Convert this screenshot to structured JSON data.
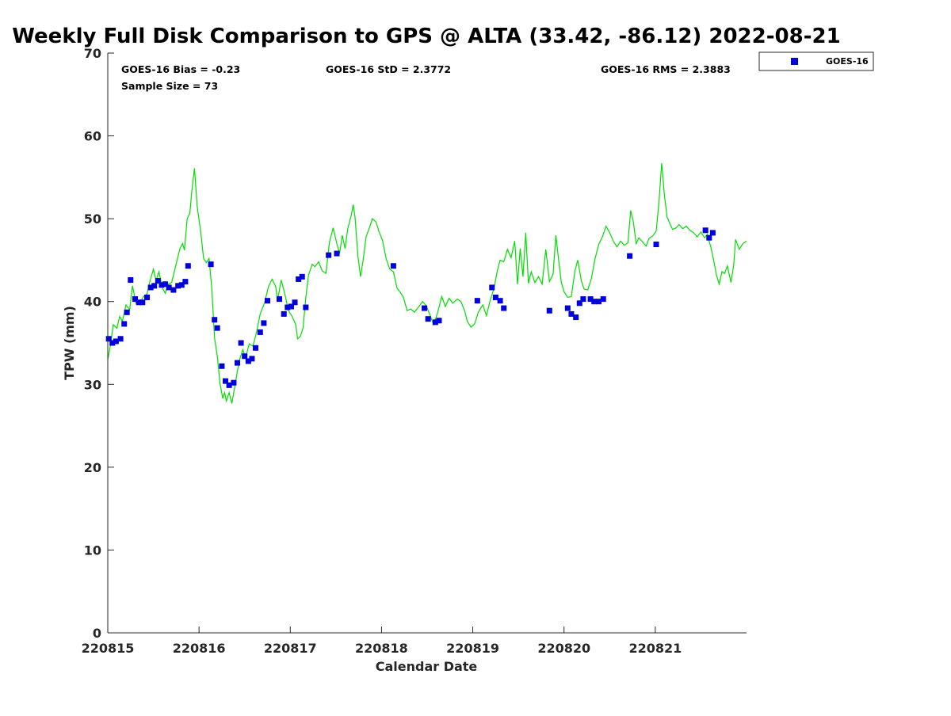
{
  "chart_data": {
    "type": "scatter",
    "title": "Weekly Full Disk Comparison to GPS @ ALTA (33.42, -86.12) 2022-08-21",
    "xlabel": "Calendar Date",
    "ylabel": "TPW (mm)",
    "xlim": [
      0,
      7
    ],
    "ylim": [
      0,
      70
    ],
    "x_ticks": [
      0,
      1,
      2,
      3,
      4,
      5,
      6
    ],
    "x_tick_labels": [
      "220815",
      "220816",
      "220817",
      "220818",
      "220819",
      "220820",
      "220821"
    ],
    "y_ticks": [
      0,
      10,
      20,
      30,
      40,
      50,
      60,
      70
    ],
    "y_tick_labels": [
      "0",
      "10",
      "20",
      "30",
      "40",
      "50",
      "60",
      "70"
    ],
    "stats": {
      "bias": "GOES-16 Bias = -0.23",
      "sample_size": "Sample Size = 73",
      "std": "GOES-16 StD = 2.3772",
      "rms": "GOES-16 RMS = 2.3883"
    },
    "legend": {
      "position": "top-right, outside plot",
      "label": "GOES-16"
    },
    "series": [
      {
        "name": "GOES-16",
        "kind": "scatter",
        "marker": "square",
        "color": "#0000dd",
        "points": [
          [
            0.01,
            35.5
          ],
          [
            0.05,
            35.0
          ],
          [
            0.09,
            35.2
          ],
          [
            0.14,
            35.5
          ],
          [
            0.18,
            37.3
          ],
          [
            0.21,
            38.7
          ],
          [
            0.25,
            42.6
          ],
          [
            0.3,
            40.3
          ],
          [
            0.34,
            39.9
          ],
          [
            0.38,
            39.9
          ],
          [
            0.43,
            40.5
          ],
          [
            0.47,
            41.7
          ],
          [
            0.51,
            41.9
          ],
          [
            0.55,
            42.5
          ],
          [
            0.59,
            42.0
          ],
          [
            0.63,
            42.1
          ],
          [
            0.67,
            41.7
          ],
          [
            0.72,
            41.4
          ],
          [
            0.77,
            41.9
          ],
          [
            0.81,
            42.0
          ],
          [
            0.85,
            42.4
          ],
          [
            0.88,
            44.3
          ],
          [
            1.13,
            44.5
          ],
          [
            1.17,
            37.8
          ],
          [
            1.2,
            36.8
          ],
          [
            1.25,
            32.2
          ],
          [
            1.29,
            30.4
          ],
          [
            1.33,
            29.9
          ],
          [
            1.38,
            30.2
          ],
          [
            1.42,
            32.6
          ],
          [
            1.46,
            35.0
          ],
          [
            1.5,
            33.4
          ],
          [
            1.54,
            32.8
          ],
          [
            1.58,
            33.1
          ],
          [
            1.62,
            34.4
          ],
          [
            1.67,
            36.3
          ],
          [
            1.71,
            37.4
          ],
          [
            1.75,
            40.1
          ],
          [
            1.88,
            40.3
          ],
          [
            1.93,
            38.5
          ],
          [
            1.97,
            39.3
          ],
          [
            2.01,
            39.4
          ],
          [
            2.05,
            39.9
          ],
          [
            2.09,
            42.7
          ],
          [
            2.13,
            43.0
          ],
          [
            2.17,
            39.3
          ],
          [
            2.42,
            45.6
          ],
          [
            2.51,
            45.8
          ],
          [
            3.13,
            44.3
          ],
          [
            3.47,
            39.2
          ],
          [
            3.51,
            37.9
          ],
          [
            3.59,
            37.5
          ],
          [
            3.63,
            37.7
          ],
          [
            4.05,
            40.1
          ],
          [
            4.21,
            41.7
          ],
          [
            4.25,
            40.5
          ],
          [
            4.3,
            40.1
          ],
          [
            4.34,
            39.2
          ],
          [
            4.84,
            38.9
          ],
          [
            5.04,
            39.2
          ],
          [
            5.08,
            38.5
          ],
          [
            5.13,
            38.1
          ],
          [
            5.17,
            39.8
          ],
          [
            5.21,
            40.3
          ],
          [
            5.29,
            40.3
          ],
          [
            5.33,
            40.0
          ],
          [
            5.38,
            40.0
          ],
          [
            5.43,
            40.3
          ],
          [
            5.72,
            45.5
          ],
          [
            6.01,
            46.9
          ],
          [
            6.55,
            48.6
          ],
          [
            6.59,
            47.7
          ],
          [
            6.63,
            48.3
          ]
        ]
      },
      {
        "name": "GPS",
        "kind": "line",
        "color": "#00dd00",
        "points": [
          [
            0.0,
            33.0
          ],
          [
            0.03,
            34.8
          ],
          [
            0.06,
            37.2
          ],
          [
            0.1,
            36.8
          ],
          [
            0.13,
            38.2
          ],
          [
            0.16,
            37.6
          ],
          [
            0.2,
            39.6
          ],
          [
            0.24,
            39.0
          ],
          [
            0.27,
            41.9
          ],
          [
            0.31,
            39.8
          ],
          [
            0.35,
            39.7
          ],
          [
            0.39,
            40.6
          ],
          [
            0.43,
            40.9
          ],
          [
            0.46,
            42.4
          ],
          [
            0.5,
            43.9
          ],
          [
            0.53,
            42.5
          ],
          [
            0.56,
            43.6
          ],
          [
            0.6,
            41.6
          ],
          [
            0.63,
            41.0
          ],
          [
            0.66,
            42.1
          ],
          [
            0.7,
            42.3
          ],
          [
            0.74,
            44.1
          ],
          [
            0.79,
            46.4
          ],
          [
            0.82,
            47.0
          ],
          [
            0.84,
            46.2
          ],
          [
            0.87,
            50.0
          ],
          [
            0.9,
            50.7
          ],
          [
            0.92,
            53.2
          ],
          [
            0.95,
            56.1
          ],
          [
            0.98,
            51.5
          ],
          [
            1.02,
            48.3
          ],
          [
            1.05,
            45.2
          ],
          [
            1.08,
            44.7
          ],
          [
            1.11,
            45.2
          ],
          [
            1.14,
            41.5
          ],
          [
            1.17,
            35.6
          ],
          [
            1.2,
            33.4
          ],
          [
            1.23,
            30.1
          ],
          [
            1.26,
            28.3
          ],
          [
            1.28,
            29.0
          ],
          [
            1.3,
            28.0
          ],
          [
            1.33,
            29.0
          ],
          [
            1.36,
            27.7
          ],
          [
            1.39,
            29.6
          ],
          [
            1.42,
            31.6
          ],
          [
            1.45,
            33.2
          ],
          [
            1.48,
            34.2
          ],
          [
            1.51,
            33.2
          ],
          [
            1.55,
            34.9
          ],
          [
            1.59,
            34.6
          ],
          [
            1.63,
            36.3
          ],
          [
            1.67,
            38.5
          ],
          [
            1.72,
            39.9
          ],
          [
            1.76,
            41.8
          ],
          [
            1.8,
            42.7
          ],
          [
            1.84,
            41.8
          ],
          [
            1.86,
            40.1
          ],
          [
            1.9,
            42.6
          ],
          [
            1.94,
            40.9
          ],
          [
            1.98,
            38.9
          ],
          [
            2.02,
            38.2
          ],
          [
            2.06,
            37.2
          ],
          [
            2.08,
            35.5
          ],
          [
            2.11,
            35.8
          ],
          [
            2.14,
            36.8
          ],
          [
            2.17,
            40.5
          ],
          [
            2.2,
            43.2
          ],
          [
            2.24,
            44.5
          ],
          [
            2.27,
            44.2
          ],
          [
            2.31,
            44.8
          ],
          [
            2.35,
            43.7
          ],
          [
            2.39,
            43.4
          ],
          [
            2.43,
            47.2
          ],
          [
            2.47,
            48.9
          ],
          [
            2.51,
            47.0
          ],
          [
            2.54,
            45.8
          ],
          [
            2.57,
            48.0
          ],
          [
            2.6,
            46.4
          ],
          [
            2.63,
            48.8
          ],
          [
            2.67,
            50.5
          ],
          [
            2.69,
            51.7
          ],
          [
            2.71,
            50.2
          ],
          [
            2.74,
            45.6
          ],
          [
            2.77,
            43.0
          ],
          [
            2.8,
            45.1
          ],
          [
            2.83,
            47.8
          ],
          [
            2.87,
            49.0
          ],
          [
            2.9,
            50.0
          ],
          [
            2.94,
            49.6
          ],
          [
            2.97,
            48.5
          ],
          [
            3.01,
            47.4
          ],
          [
            3.05,
            45.2
          ],
          [
            3.09,
            43.9
          ],
          [
            3.13,
            43.6
          ],
          [
            3.17,
            41.6
          ],
          [
            3.2,
            41.2
          ],
          [
            3.24,
            40.5
          ],
          [
            3.28,
            38.9
          ],
          [
            3.32,
            39.1
          ],
          [
            3.36,
            38.7
          ],
          [
            3.41,
            39.4
          ],
          [
            3.45,
            40.0
          ],
          [
            3.49,
            39.5
          ],
          [
            3.53,
            38.4
          ],
          [
            3.57,
            37.2
          ],
          [
            3.61,
            38.5
          ],
          [
            3.66,
            40.6
          ],
          [
            3.7,
            39.4
          ],
          [
            3.74,
            40.4
          ],
          [
            3.78,
            39.8
          ],
          [
            3.83,
            40.3
          ],
          [
            3.87,
            40.0
          ],
          [
            3.91,
            38.9
          ],
          [
            3.94,
            37.6
          ],
          [
            3.98,
            36.9
          ],
          [
            4.02,
            37.3
          ],
          [
            4.06,
            38.7
          ],
          [
            4.11,
            39.6
          ],
          [
            4.15,
            38.3
          ],
          [
            4.19,
            40.1
          ],
          [
            4.23,
            41.5
          ],
          [
            4.27,
            43.8
          ],
          [
            4.3,
            45.0
          ],
          [
            4.34,
            44.8
          ],
          [
            4.38,
            46.3
          ],
          [
            4.42,
            45.3
          ],
          [
            4.46,
            47.3
          ],
          [
            4.49,
            42.1
          ],
          [
            4.52,
            46.4
          ],
          [
            4.55,
            43.0
          ],
          [
            4.58,
            48.3
          ],
          [
            4.61,
            42.2
          ],
          [
            4.64,
            43.6
          ],
          [
            4.68,
            42.3
          ],
          [
            4.72,
            43.0
          ],
          [
            4.76,
            42.1
          ],
          [
            4.8,
            46.3
          ],
          [
            4.84,
            42.4
          ],
          [
            4.88,
            43.3
          ],
          [
            4.91,
            48.0
          ],
          [
            4.94,
            45.1
          ],
          [
            4.97,
            42.3
          ],
          [
            5.0,
            41.2
          ],
          [
            5.04,
            40.5
          ],
          [
            5.08,
            40.6
          ],
          [
            5.12,
            43.7
          ],
          [
            5.15,
            45.0
          ],
          [
            5.19,
            42.5
          ],
          [
            5.22,
            41.5
          ],
          [
            5.26,
            41.4
          ],
          [
            5.3,
            42.8
          ],
          [
            5.34,
            45.2
          ],
          [
            5.38,
            46.9
          ],
          [
            5.42,
            47.8
          ],
          [
            5.46,
            49.1
          ],
          [
            5.5,
            48.3
          ],
          [
            5.54,
            47.3
          ],
          [
            5.58,
            46.6
          ],
          [
            5.62,
            47.3
          ],
          [
            5.66,
            46.8
          ],
          [
            5.7,
            47.1
          ],
          [
            5.73,
            51.0
          ],
          [
            5.76,
            49.6
          ],
          [
            5.79,
            47.0
          ],
          [
            5.82,
            47.7
          ],
          [
            5.86,
            47.2
          ],
          [
            5.9,
            46.7
          ],
          [
            5.93,
            47.6
          ],
          [
            5.97,
            47.9
          ],
          [
            6.01,
            48.5
          ],
          [
            6.04,
            52.0
          ],
          [
            6.07,
            56.7
          ],
          [
            6.1,
            52.8
          ],
          [
            6.13,
            50.2
          ],
          [
            6.16,
            49.4
          ],
          [
            6.19,
            48.7
          ],
          [
            6.23,
            48.9
          ],
          [
            6.26,
            49.3
          ],
          [
            6.3,
            48.8
          ],
          [
            6.34,
            49.1
          ],
          [
            6.38,
            48.6
          ],
          [
            6.42,
            48.3
          ],
          [
            6.46,
            47.8
          ],
          [
            6.5,
            48.4
          ],
          [
            6.54,
            47.7
          ],
          [
            6.57,
            48.1
          ],
          [
            6.61,
            46.5
          ],
          [
            6.64,
            45.0
          ],
          [
            6.67,
            43.2
          ],
          [
            6.7,
            42.1
          ],
          [
            6.73,
            43.6
          ],
          [
            6.76,
            43.4
          ],
          [
            6.79,
            44.3
          ],
          [
            6.83,
            42.3
          ],
          [
            6.86,
            44.5
          ],
          [
            6.88,
            47.5
          ],
          [
            6.92,
            46.3
          ],
          [
            6.96,
            47.0
          ],
          [
            7.0,
            47.3
          ]
        ]
      }
    ]
  }
}
